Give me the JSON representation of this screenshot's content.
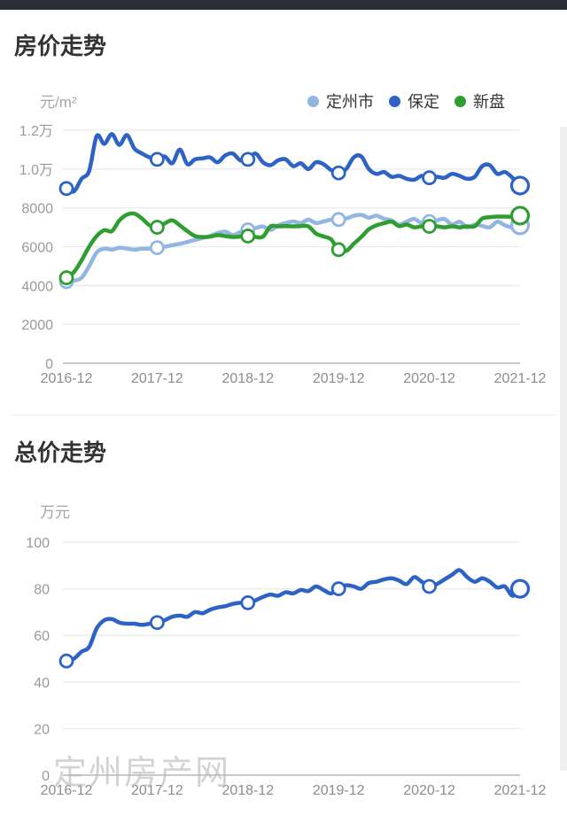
{
  "page": {
    "top_bar_color": "#2a2d33",
    "background": "#ffffff"
  },
  "watermark_text": "定州房产网",
  "chart_data": [
    {
      "type": "line",
      "title": "房价走势",
      "y_unit": "元/m²",
      "x_ticks": [
        "2016-12",
        "2017-12",
        "2018-12",
        "2019-12",
        "2020-12",
        "2021-12"
      ],
      "x_points": 61,
      "ylim": [
        0,
        12000
      ],
      "y_tick_labels": [
        "0",
        "2000",
        "4000",
        "6000",
        "8000",
        "1.0万",
        "1.2万"
      ],
      "y_tick_values": [
        0,
        2000,
        4000,
        6000,
        8000,
        10000,
        12000
      ],
      "grid": true,
      "legend_position": "top-right",
      "marker_every": 12,
      "series": [
        {
          "name": "定州市",
          "color": "#92b6e1",
          "values": [
            4200,
            4250,
            4400,
            5000,
            5700,
            5900,
            5850,
            5950,
            5900,
            5850,
            5900,
            5900,
            5950,
            6000,
            6080,
            6150,
            6250,
            6350,
            6450,
            6550,
            6700,
            6780,
            6600,
            6750,
            6870,
            6960,
            7040,
            6870,
            7100,
            7220,
            7300,
            7220,
            7390,
            7220,
            7300,
            7390,
            7400,
            7450,
            7590,
            7640,
            7500,
            7600,
            7440,
            7360,
            7140,
            7290,
            7430,
            7210,
            7300,
            7360,
            7430,
            7140,
            7290,
            7000,
            7140,
            7070,
            7000,
            7290,
            7100,
            7000,
            7100
          ]
        },
        {
          "name": "保定",
          "color": "#2e63c6",
          "values": [
            9000,
            8850,
            9500,
            9900,
            11700,
            11300,
            11800,
            11250,
            11750,
            11050,
            10800,
            10600,
            10500,
            10650,
            10300,
            11000,
            10250,
            10500,
            10550,
            10600,
            10350,
            10700,
            10800,
            10450,
            10500,
            10800,
            10350,
            10200,
            10450,
            10500,
            10150,
            10300,
            10000,
            10350,
            10250,
            9950,
            9800,
            10000,
            10600,
            10650,
            10000,
            9750,
            9850,
            9600,
            9650,
            9500,
            9450,
            9650,
            9550,
            9600,
            9550,
            9750,
            9650,
            9500,
            9600,
            10150,
            10200,
            9750,
            9850,
            9550,
            9150
          ]
        },
        {
          "name": "新盘",
          "color": "#2f9e31",
          "values": [
            4400,
            4700,
            5300,
            6000,
            6550,
            6850,
            6800,
            7350,
            7650,
            7700,
            7450,
            7100,
            7000,
            7200,
            7360,
            7100,
            6800,
            6550,
            6500,
            6520,
            6600,
            6550,
            6500,
            6520,
            6550,
            6500,
            6520,
            7050,
            7050,
            7060,
            7050,
            7060,
            7050,
            6680,
            6530,
            6380,
            5850,
            5780,
            6150,
            6500,
            6900,
            7100,
            7210,
            7290,
            7060,
            7140,
            7000,
            7050,
            7050,
            7050,
            7000,
            7050,
            7000,
            7050,
            7050,
            7450,
            7520,
            7550,
            7550,
            7550,
            7600
          ]
        }
      ]
    },
    {
      "type": "line",
      "title": "总价走势",
      "y_unit": "万元",
      "x_ticks": [
        "2016-12",
        "2017-12",
        "2018-12",
        "2019-12",
        "2020-12",
        "2021-12"
      ],
      "x_points": 61,
      "ylim": [
        0,
        100
      ],
      "y_tick_labels": [
        "0",
        "20",
        "40",
        "60",
        "80",
        "100"
      ],
      "y_tick_values": [
        0,
        20,
        40,
        60,
        80,
        100
      ],
      "grid": true,
      "marker_every": 12,
      "series": [
        {
          "color": "#2e63c6",
          "values": [
            49,
            50,
            53,
            55,
            63,
            66.5,
            67,
            65.5,
            65,
            65,
            64.5,
            65,
            65.5,
            66.5,
            68,
            68.5,
            68,
            70,
            69.5,
            71,
            72,
            72.5,
            73.5,
            74,
            74,
            75,
            76.5,
            77.5,
            77,
            78.5,
            78,
            79.5,
            79,
            81,
            79.5,
            78,
            80,
            81.5,
            81,
            80,
            82.5,
            83,
            84,
            84.5,
            83.5,
            82,
            85,
            83,
            81,
            82,
            84,
            86,
            88,
            85,
            83,
            84.5,
            83,
            80.5,
            81,
            77,
            80
          ]
        }
      ]
    }
  ]
}
